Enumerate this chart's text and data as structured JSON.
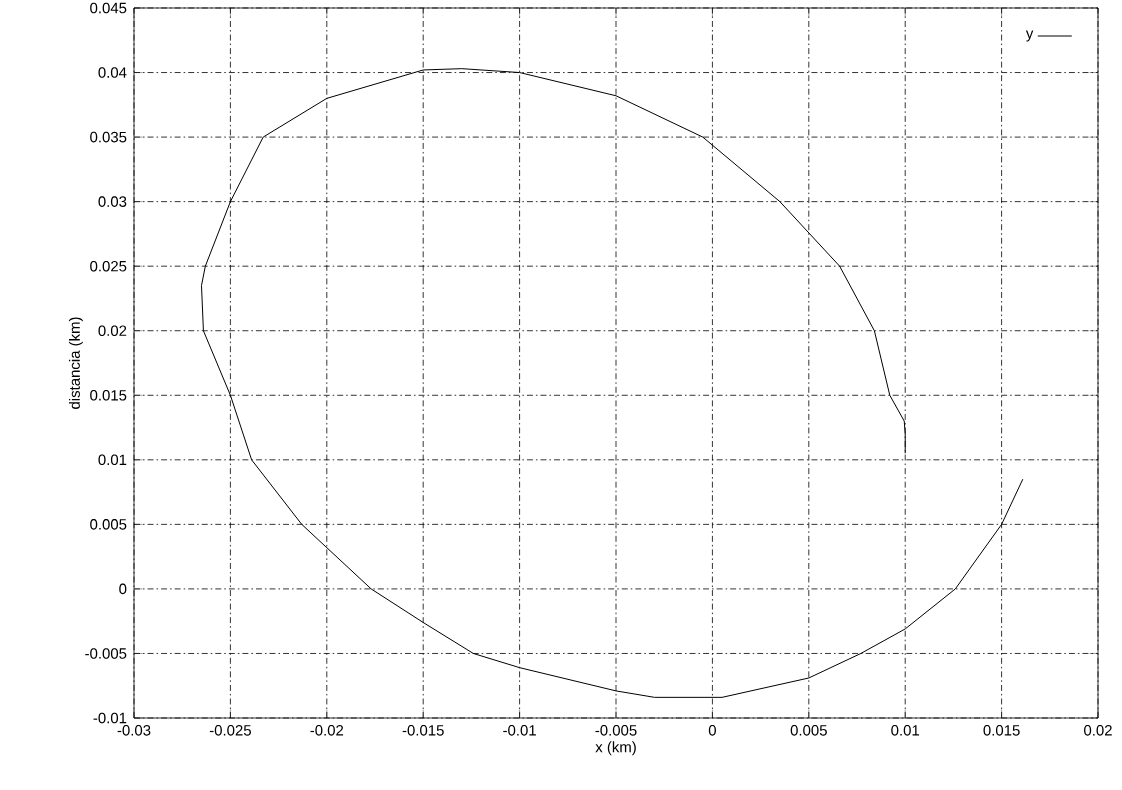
{
  "chart_data": {
    "type": "line",
    "xlabel": "x (km)",
    "ylabel": "distancia (km)",
    "xlim": [
      -0.03,
      0.02
    ],
    "ylim": [
      -0.01,
      0.045
    ],
    "xticks": [
      -0.03,
      -0.025,
      -0.02,
      -0.015,
      -0.01,
      -0.005,
      0,
      0.005,
      0.01,
      0.015,
      0.02
    ],
    "yticks": [
      -0.01,
      -0.005,
      0,
      0.005,
      0.01,
      0.015,
      0.02,
      0.025,
      0.03,
      0.035,
      0.04,
      0.045
    ],
    "grid": true,
    "legend": "top right",
    "series": [
      {
        "name": "y",
        "color": "#000000",
        "x": [
          0.01,
          0.01,
          0.00995,
          0.0092,
          0.0084,
          0.0066,
          0.0035,
          -0.0005,
          -0.005,
          -0.01,
          -0.013,
          -0.015,
          -0.02,
          -0.0233,
          -0.025,
          -0.0263,
          -0.0265,
          -0.0264,
          -0.025,
          -0.0239,
          -0.0213,
          -0.0177,
          -0.015,
          -0.0124,
          -0.01,
          -0.005,
          -0.003,
          0.0005,
          0.005,
          0.0077,
          0.01,
          0.0126,
          0.015,
          0.0161
        ],
        "values": [
          0.0105,
          0.012,
          0.013,
          0.015,
          0.02,
          0.025,
          0.03,
          0.035,
          0.0382,
          0.04,
          0.0403,
          0.0402,
          0.038,
          0.035,
          0.03,
          0.025,
          0.0235,
          0.02,
          0.015,
          0.01,
          0.005,
          0,
          -0.0026,
          -0.005,
          -0.0061,
          -0.0079,
          -0.0084,
          -0.0084,
          -0.0069,
          -0.005,
          -0.0031,
          0,
          0.005,
          0.0085
        ]
      }
    ]
  }
}
